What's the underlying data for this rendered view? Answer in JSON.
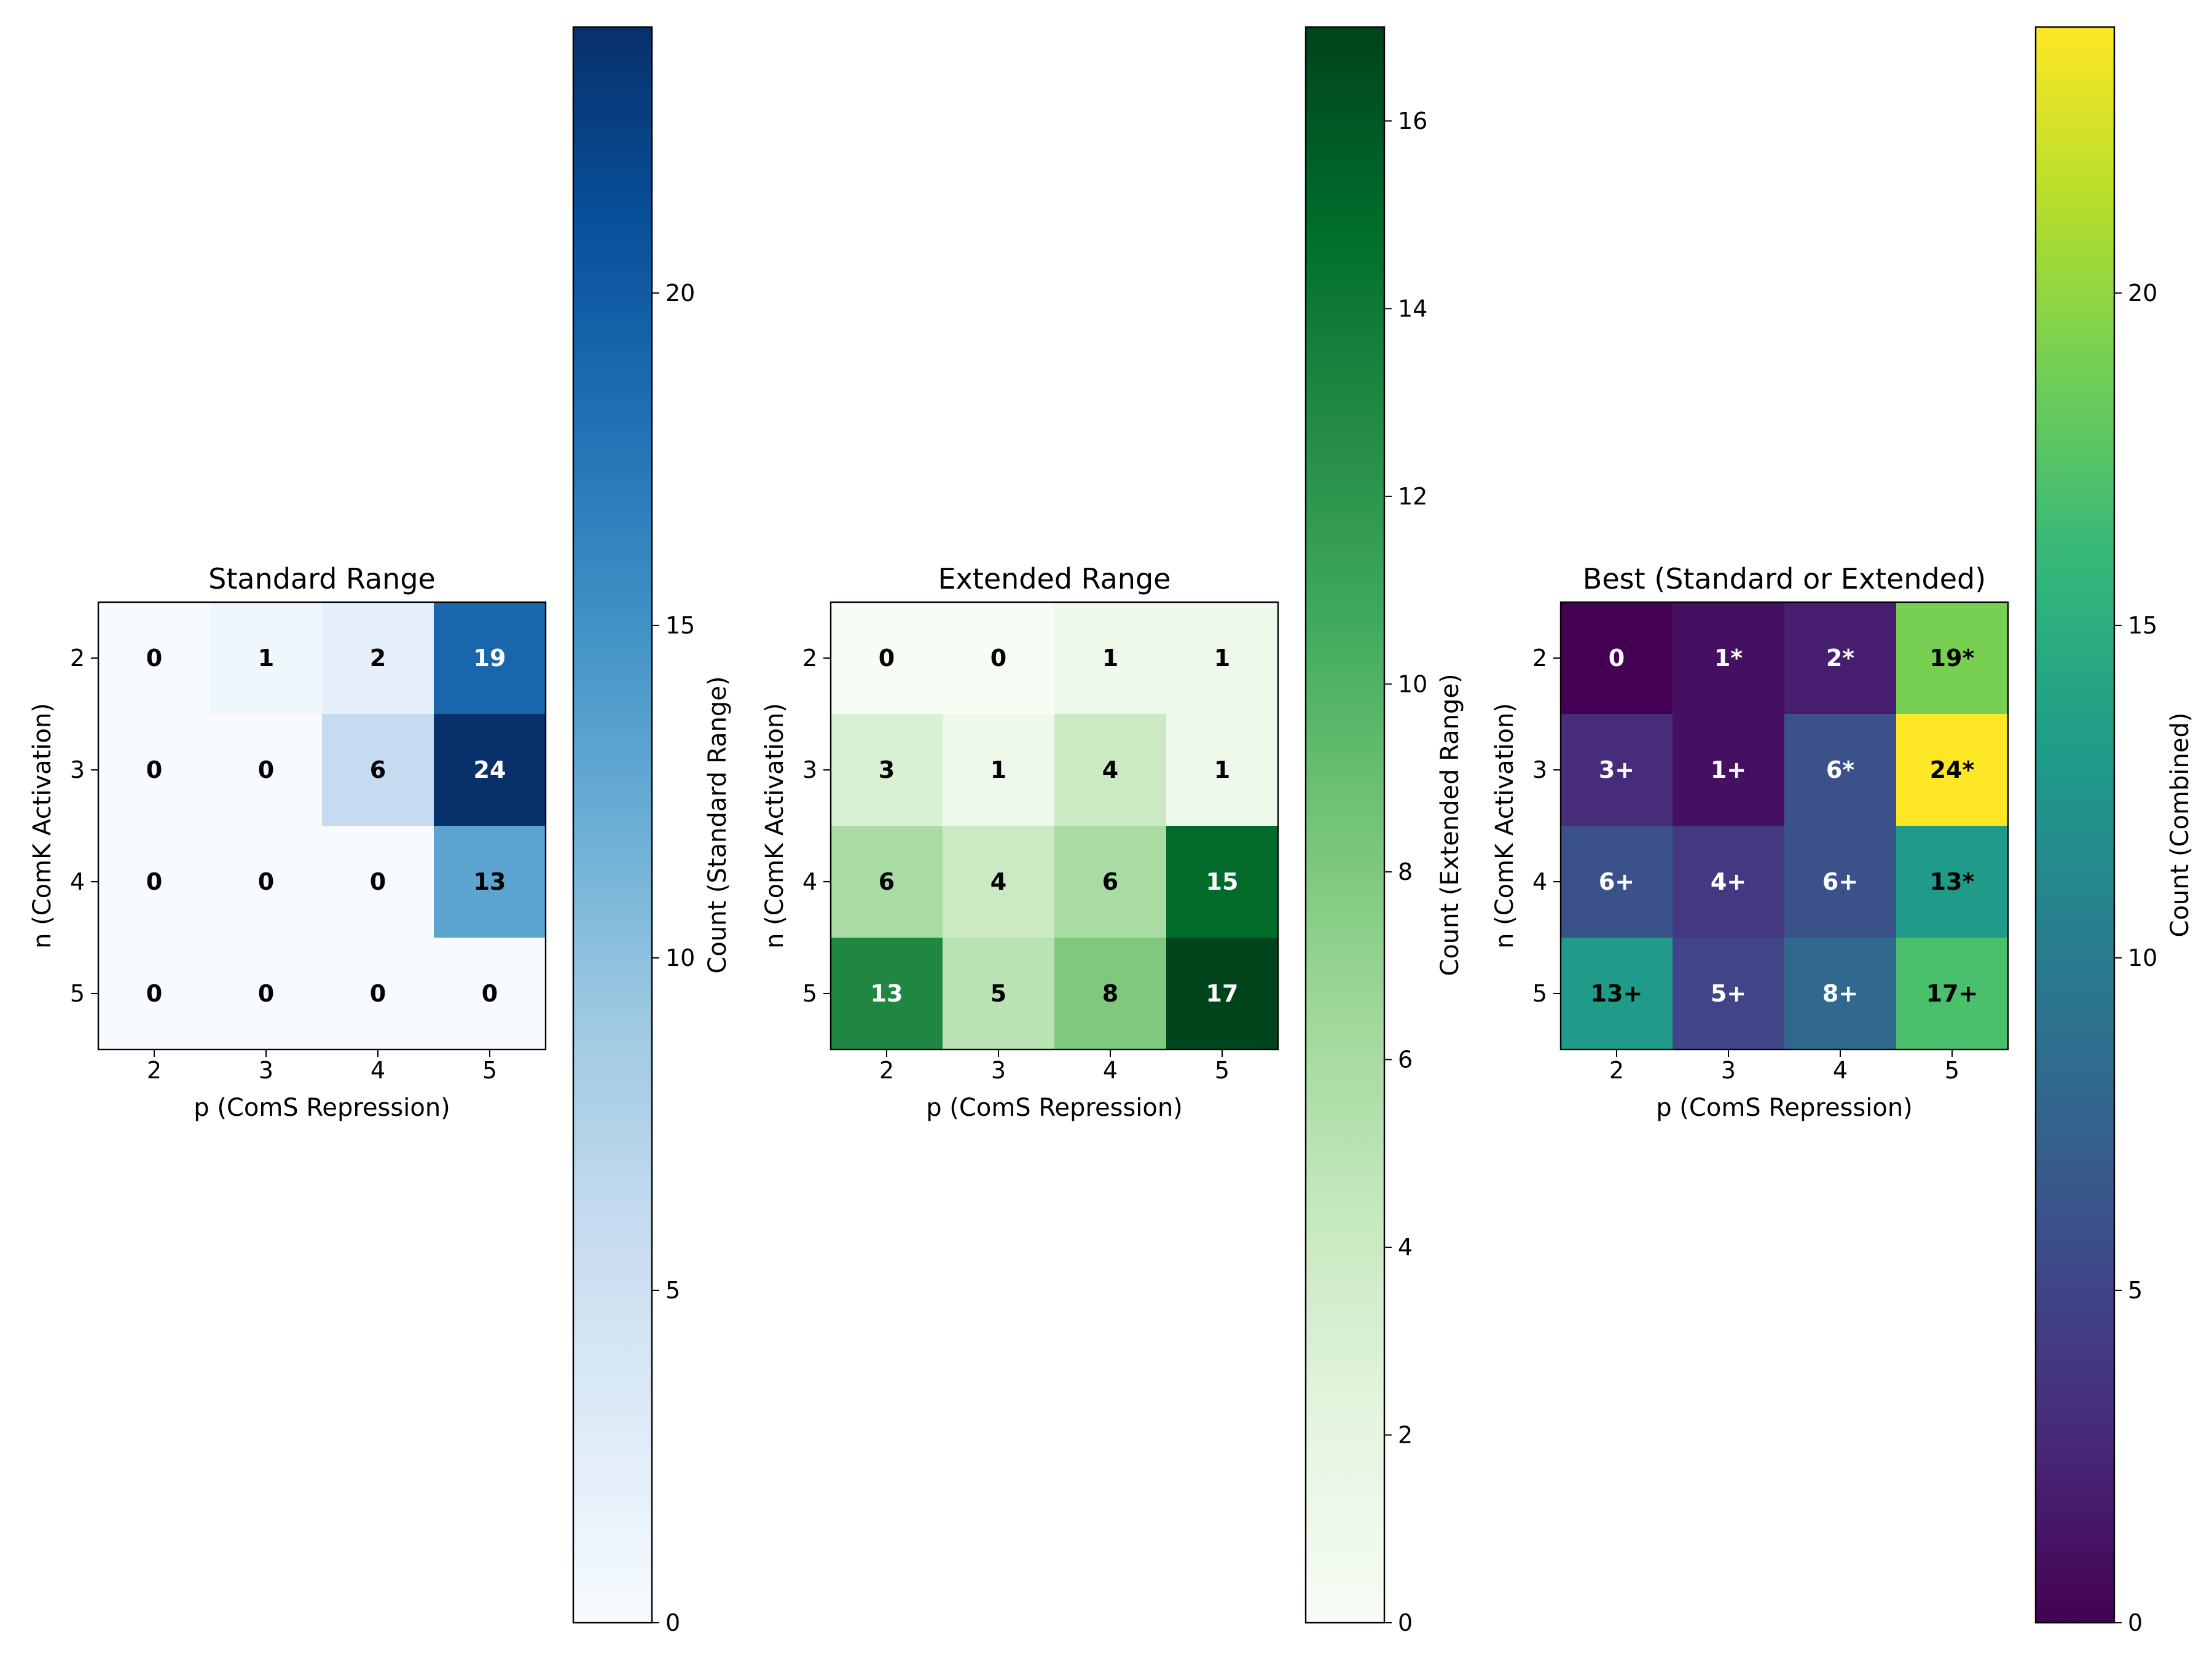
{
  "chart_data": [
    {
      "type": "heatmap",
      "title": "Standard Range",
      "xlabel": "p (ComS Repression)",
      "ylabel": "n (ComK Activation)",
      "x_ticks": [
        "2",
        "3",
        "4",
        "5"
      ],
      "y_ticks": [
        "2",
        "3",
        "4",
        "5"
      ],
      "values": [
        [
          0,
          1,
          2,
          19
        ],
        [
          0,
          0,
          6,
          24
        ],
        [
          0,
          0,
          0,
          13
        ],
        [
          0,
          0,
          0,
          0
        ]
      ],
      "labels": [
        [
          "0",
          "1",
          "2",
          "19"
        ],
        [
          "0",
          "0",
          "6",
          "24"
        ],
        [
          "0",
          "0",
          "0",
          "13"
        ],
        [
          "0",
          "0",
          "0",
          "0"
        ]
      ],
      "colormap": "Blues",
      "vmin": 0,
      "vmax": 24,
      "colorbar_label": "Count (Standard Range)",
      "colorbar_ticks": [
        0,
        5,
        10,
        15,
        20
      ]
    },
    {
      "type": "heatmap",
      "title": "Extended Range",
      "xlabel": "p (ComS Repression)",
      "ylabel": "n (ComK Activation)",
      "x_ticks": [
        "2",
        "3",
        "4",
        "5"
      ],
      "y_ticks": [
        "2",
        "3",
        "4",
        "5"
      ],
      "values": [
        [
          0,
          0,
          1,
          1
        ],
        [
          3,
          1,
          4,
          1
        ],
        [
          6,
          4,
          6,
          15
        ],
        [
          13,
          5,
          8,
          17
        ]
      ],
      "labels": [
        [
          "0",
          "0",
          "1",
          "1"
        ],
        [
          "3",
          "1",
          "4",
          "1"
        ],
        [
          "6",
          "4",
          "6",
          "15"
        ],
        [
          "13",
          "5",
          "8",
          "17"
        ]
      ],
      "colormap": "Greens",
      "vmin": 0,
      "vmax": 17,
      "colorbar_label": "Count (Extended Range)",
      "colorbar_ticks": [
        0,
        2,
        4,
        6,
        8,
        10,
        12,
        14,
        16
      ]
    },
    {
      "type": "heatmap",
      "title": "Best (Standard or Extended)",
      "xlabel": "p (ComS Repression)",
      "ylabel": "n (ComK Activation)",
      "x_ticks": [
        "2",
        "3",
        "4",
        "5"
      ],
      "y_ticks": [
        "2",
        "3",
        "4",
        "5"
      ],
      "values": [
        [
          0,
          1,
          2,
          19
        ],
        [
          3,
          1,
          6,
          24
        ],
        [
          6,
          4,
          6,
          13
        ],
        [
          13,
          5,
          8,
          17
        ]
      ],
      "labels": [
        [
          "0",
          "1*",
          "2*",
          "19*"
        ],
        [
          "3+",
          "1+",
          "6*",
          "24*"
        ],
        [
          "6+",
          "4+",
          "6+",
          "13*"
        ],
        [
          "13+",
          "5+",
          "8+",
          "17+"
        ]
      ],
      "colormap": "viridis",
      "vmin": 0,
      "vmax": 24,
      "colorbar_label": "Count (Combined)",
      "colorbar_ticks": [
        0,
        5,
        10,
        15,
        20
      ]
    }
  ]
}
